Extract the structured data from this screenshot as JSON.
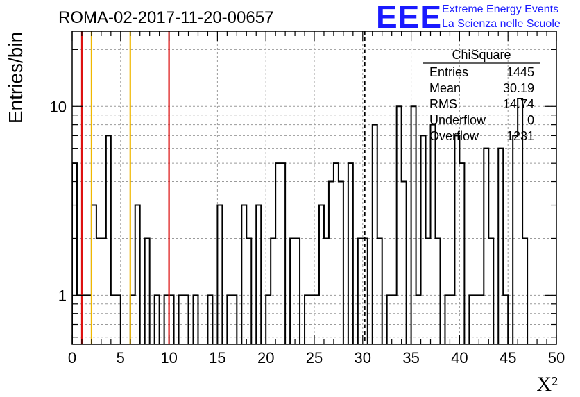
{
  "chart_data": {
    "type": "bar",
    "title": "ROMA-02-2017-11-20-00657",
    "xlabel": "X²",
    "ylabel": "Entries/bin",
    "xlim": [
      0,
      50
    ],
    "ylim": [
      0.55,
      25
    ],
    "y_scale": "log",
    "grid": true,
    "x_ticks": [
      "0",
      "5",
      "10",
      "15",
      "20",
      "25",
      "30",
      "35",
      "40",
      "45",
      "50"
    ],
    "y_ticks": [
      "1",
      "10"
    ],
    "bin_width": 0.5,
    "values": [
      5,
      1,
      1,
      1,
      3,
      2,
      2,
      7,
      1,
      1,
      0,
      0,
      1,
      3,
      0,
      2,
      0,
      1,
      0,
      1,
      1,
      0,
      1,
      1,
      0,
      1,
      0,
      0,
      1,
      0,
      3,
      0,
      1,
      1,
      0,
      3,
      2,
      0,
      3,
      0,
      1,
      2,
      5,
      5,
      0,
      2,
      2,
      0,
      1,
      1,
      1,
      3,
      2,
      4,
      5,
      4,
      0,
      5,
      0,
      2,
      2,
      0,
      8,
      2,
      0,
      1,
      1,
      10,
      4,
      0,
      10,
      1,
      7,
      2,
      8,
      2,
      0,
      1,
      1,
      7,
      5,
      0,
      1,
      1,
      1,
      6,
      2,
      0,
      6,
      1,
      0,
      7,
      11,
      2
    ],
    "vertical_lines": [
      {
        "x": 1,
        "color": "#dd1111",
        "style": "solid"
      },
      {
        "x": 2,
        "color": "#f0b800",
        "style": "solid"
      },
      {
        "x": 6,
        "color": "#f0b800",
        "style": "solid"
      },
      {
        "x": 10,
        "color": "#dd1111",
        "style": "solid"
      },
      {
        "x": 30.19,
        "color": "#000000",
        "style": "dashed"
      }
    ],
    "stats_box": {
      "name": "ChiSquare",
      "rows": [
        {
          "label": "Entries",
          "value": "1445"
        },
        {
          "label": "Mean",
          "value": "30.19"
        },
        {
          "label": "RMS",
          "value": "14.74"
        },
        {
          "label": "Underflow",
          "value": "0"
        },
        {
          "label": "Overflow",
          "value": "1231"
        }
      ]
    }
  },
  "logo": {
    "big_text": "EEE",
    "line1": "Extreme Energy Events",
    "line2": "La Scienza nelle Scuole",
    "color": "#1a1aff"
  }
}
